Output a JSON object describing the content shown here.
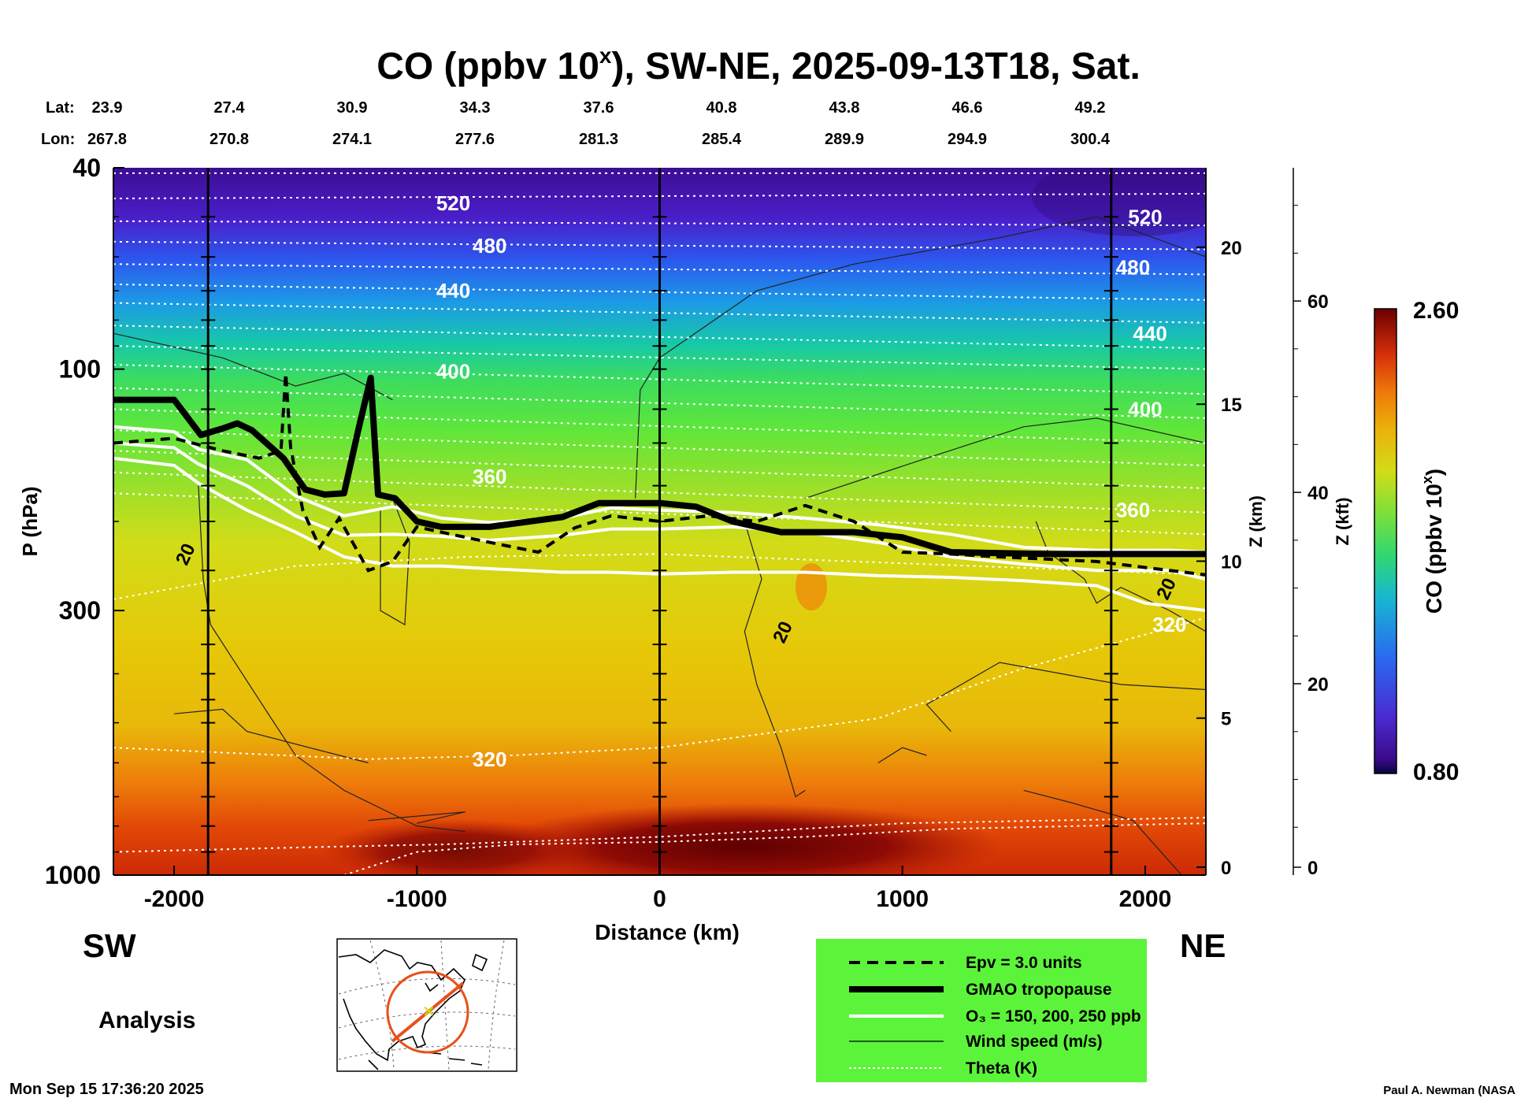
{
  "title": {
    "main": "CO (ppbv 10",
    "sup": "x",
    "rest": "), SW-NE, 2025-09-13T18, Sat."
  },
  "coords": {
    "lat_label": "Lat:",
    "lon_label": "Lon:",
    "lat": [
      "23.9",
      "27.4",
      "30.9",
      "34.3",
      "37.6",
      "40.8",
      "43.8",
      "46.6",
      "49.2"
    ],
    "lon": [
      "267.8",
      "270.8",
      "274.1",
      "277.6",
      "281.3",
      "285.4",
      "289.9",
      "294.9",
      "300.4"
    ]
  },
  "chart_data": {
    "type": "heatmap",
    "xlabel": "Distance (km)",
    "ylabel": "P (hPa)",
    "x_ticks": [
      -2000,
      -1000,
      0,
      1000,
      2000
    ],
    "xlim": [
      -2250,
      2250
    ],
    "p_ticks": [
      40,
      100,
      300,
      1000
    ],
    "ylim_hpa": [
      1000,
      40
    ],
    "z_km_label": "Z (km)",
    "z_km_ticks": [
      0,
      5,
      10,
      15,
      20
    ],
    "z_kft_label": "Z (kft)",
    "z_kft_ticks": [
      0,
      20,
      40,
      60
    ],
    "colorbar": {
      "label_main": "CO (ppbv 10",
      "label_sup": "x",
      "label_end": ")",
      "min": "0.80",
      "max": "2.60"
    },
    "theta_labels": [
      {
        "text": "520",
        "x": -850,
        "p": 47
      },
      {
        "text": "480",
        "x": -700,
        "p": 57
      },
      {
        "text": "440",
        "x": -850,
        "p": 70
      },
      {
        "text": "400",
        "x": -850,
        "p": 101
      },
      {
        "text": "360",
        "x": -700,
        "p": 163
      },
      {
        "text": "320",
        "x": -700,
        "p": 590
      },
      {
        "text": "520",
        "x": 2000,
        "p": 50
      },
      {
        "text": "480",
        "x": 1950,
        "p": 63
      },
      {
        "text": "440",
        "x": 2020,
        "p": 85
      },
      {
        "text": "400",
        "x": 2000,
        "p": 120
      },
      {
        "text": "360",
        "x": 1950,
        "p": 190
      },
      {
        "text": "320",
        "x": 2100,
        "p": 320
      }
    ],
    "wind_labels": [
      {
        "text": "20",
        "x": -1930,
        "p": 235
      },
      {
        "text": "20",
        "x": 530,
        "p": 335
      },
      {
        "text": "20",
        "x": 2110,
        "p": 275
      }
    ],
    "tropopause_p": [
      [
        -2250,
        115
      ],
      [
        -2000,
        115
      ],
      [
        -1890,
        135
      ],
      [
        -1800,
        131
      ],
      [
        -1740,
        128
      ],
      [
        -1680,
        132
      ],
      [
        -1550,
        150
      ],
      [
        -1460,
        173
      ],
      [
        -1380,
        177
      ],
      [
        -1300,
        176
      ],
      [
        -1240,
        131
      ],
      [
        -1190,
        104
      ],
      [
        -1160,
        177
      ],
      [
        -1090,
        180
      ],
      [
        -1000,
        200
      ],
      [
        -900,
        205
      ],
      [
        -700,
        205
      ],
      [
        -400,
        196
      ],
      [
        -250,
        184
      ],
      [
        0,
        184
      ],
      [
        150,
        187
      ],
      [
        300,
        200
      ],
      [
        500,
        210
      ],
      [
        800,
        210
      ],
      [
        1000,
        215
      ],
      [
        1200,
        230
      ],
      [
        1600,
        232
      ],
      [
        2250,
        232
      ]
    ],
    "epv_p": [
      [
        -2250,
        140
      ],
      [
        -2000,
        137
      ],
      [
        -1800,
        145
      ],
      [
        -1650,
        150
      ],
      [
        -1560,
        145
      ],
      [
        -1540,
        102
      ],
      [
        -1520,
        143
      ],
      [
        -1470,
        190
      ],
      [
        -1400,
        225
      ],
      [
        -1320,
        197
      ],
      [
        -1200,
        250
      ],
      [
        -1100,
        240
      ],
      [
        -1000,
        205
      ],
      [
        -900,
        210
      ],
      [
        -700,
        220
      ],
      [
        -500,
        230
      ],
      [
        -350,
        206
      ],
      [
        -200,
        195
      ],
      [
        0,
        200
      ],
      [
        200,
        195
      ],
      [
        400,
        200
      ],
      [
        600,
        186
      ],
      [
        800,
        200
      ],
      [
        1000,
        230
      ],
      [
        1200,
        232
      ],
      [
        1400,
        235
      ],
      [
        1800,
        240
      ],
      [
        2250,
        255
      ]
    ],
    "ozone_150_p": [
      [
        -2250,
        130
      ],
      [
        -2000,
        133
      ],
      [
        -1900,
        144
      ],
      [
        -1700,
        151
      ],
      [
        -1500,
        178
      ],
      [
        -1300,
        195
      ],
      [
        -1100,
        187
      ],
      [
        -900,
        197
      ],
      [
        -700,
        201
      ],
      [
        -400,
        197
      ],
      [
        -200,
        188
      ],
      [
        0,
        190
      ],
      [
        300,
        192
      ],
      [
        600,
        197
      ],
      [
        900,
        203
      ],
      [
        1200,
        212
      ],
      [
        1500,
        225
      ],
      [
        1800,
        228
      ],
      [
        2100,
        228
      ],
      [
        2250,
        230
      ]
    ],
    "ozone_200_p": [
      [
        -2250,
        140
      ],
      [
        -2000,
        143
      ],
      [
        -1900,
        154
      ],
      [
        -1700,
        170
      ],
      [
        -1500,
        195
      ],
      [
        -1300,
        213
      ],
      [
        -1100,
        212
      ],
      [
        -900,
        214
      ],
      [
        -700,
        218
      ],
      [
        -400,
        213
      ],
      [
        -200,
        207
      ],
      [
        0,
        207
      ],
      [
        300,
        205
      ],
      [
        600,
        210
      ],
      [
        900,
        220
      ],
      [
        1200,
        235
      ],
      [
        1500,
        243
      ],
      [
        1800,
        250
      ],
      [
        2100,
        250
      ],
      [
        2250,
        260
      ]
    ],
    "ozone_250_p": [
      [
        -2250,
        150
      ],
      [
        -2000,
        155
      ],
      [
        -1900,
        168
      ],
      [
        -1700,
        190
      ],
      [
        -1500,
        210
      ],
      [
        -1300,
        235
      ],
      [
        -1100,
        245
      ],
      [
        -900,
        245
      ],
      [
        -700,
        248
      ],
      [
        -400,
        252
      ],
      [
        -200,
        252
      ],
      [
        0,
        254
      ],
      [
        300,
        252
      ],
      [
        600,
        252
      ],
      [
        900,
        256
      ],
      [
        1200,
        258
      ],
      [
        1500,
        262
      ],
      [
        1800,
        268
      ],
      [
        2000,
        290
      ],
      [
        2250,
        300
      ]
    ]
  },
  "direction": {
    "left": "SW",
    "right": "NE"
  },
  "analysis_label": "Analysis",
  "legend": [
    {
      "label": "Epv = 3.0 units",
      "style": "dashed"
    },
    {
      "label": "GMAO tropopause",
      "style": "thick"
    },
    {
      "label": "O₃ = 150, 200, 250 ppb",
      "style": "white"
    },
    {
      "label": "Wind speed (m/s)",
      "style": "thin"
    },
    {
      "label": "Theta (K)",
      "style": "dotted"
    }
  ],
  "timestamp": "Mon Sep 15 17:36:20 2025",
  "credit": "Paul A. Newman (NASA"
}
